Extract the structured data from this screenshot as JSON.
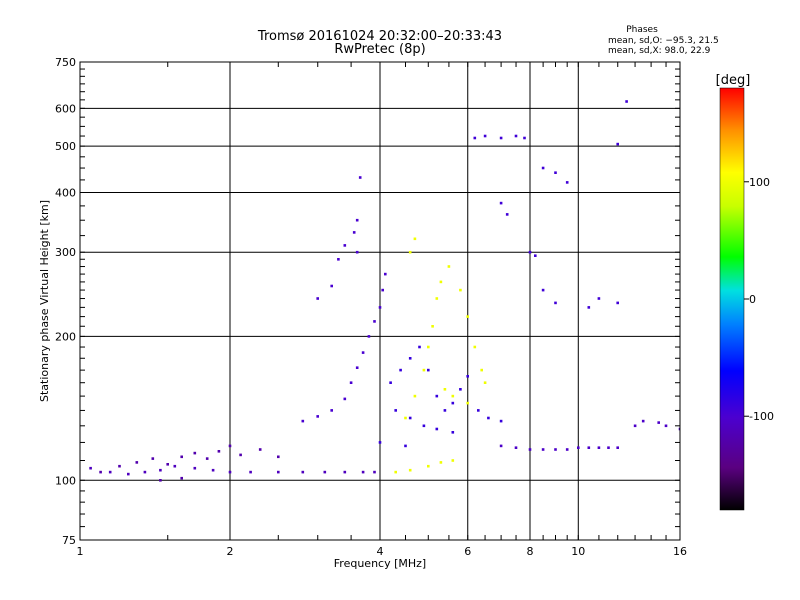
{
  "chart_data": {
    "type": "scatter",
    "title": "Tromsø 20161024 20:32:00–20:33:43",
    "subtitle": "RwPretec (8p)",
    "xlabel": "Frequency [MHz]",
    "ylabel": "Stationary phase Virtual Height [km]",
    "x_scale": "log",
    "y_scale": "log",
    "xlim": [
      1,
      16
    ],
    "ylim": [
      75,
      750
    ],
    "x_ticks": [
      1,
      2,
      4,
      6,
      8,
      10,
      16
    ],
    "y_ticks": [
      75,
      100,
      200,
      300,
      400,
      500,
      600,
      750
    ],
    "grid": true,
    "phases": {
      "heading": "Phases",
      "line_o": "mean, sd,O: −95.3, 21.5",
      "line_x": "mean, sd,X:  98.0, 22.9"
    },
    "colorbar": {
      "label": "[deg]",
      "range": [
        -180,
        180
      ],
      "ticks": [
        100,
        0,
        -100
      ],
      "colormap": "rainbow (black → purple → blue → cyan → green → yellow → orange → red)"
    },
    "series": [
      {
        "phase_deg": -110,
        "description": "Ground-level trace near 100 km",
        "points": [
          [
            1.05,
            106
          ],
          [
            1.15,
            104
          ],
          [
            1.25,
            103
          ],
          [
            1.35,
            104
          ],
          [
            1.45,
            105
          ],
          [
            1.55,
            107
          ],
          [
            1.7,
            106
          ],
          [
            1.85,
            105
          ],
          [
            2.0,
            104
          ],
          [
            2.2,
            104
          ],
          [
            2.5,
            104
          ],
          [
            2.8,
            104
          ],
          [
            3.1,
            104
          ],
          [
            3.4,
            104
          ],
          [
            3.7,
            104
          ],
          [
            3.9,
            104
          ]
        ]
      },
      {
        "phase_deg": -120,
        "description": "Low-frequency scattered echoes",
        "points": [
          [
            1.1,
            104
          ],
          [
            1.2,
            107
          ],
          [
            1.3,
            109
          ],
          [
            1.4,
            111
          ],
          [
            1.5,
            108
          ],
          [
            1.6,
            112
          ],
          [
            1.7,
            114
          ],
          [
            1.8,
            111
          ],
          [
            1.9,
            115
          ],
          [
            2.0,
            118
          ],
          [
            2.1,
            113
          ],
          [
            2.3,
            116
          ],
          [
            2.5,
            112
          ],
          [
            1.45,
            100
          ],
          [
            1.6,
            101
          ]
        ]
      },
      {
        "phase_deg": -100,
        "description": "O-mode trace rising to ~450 km",
        "points": [
          [
            2.8,
            133
          ],
          [
            3.0,
            136
          ],
          [
            3.2,
            140
          ],
          [
            3.4,
            148
          ],
          [
            3.5,
            160
          ],
          [
            3.6,
            172
          ],
          [
            3.7,
            185
          ],
          [
            3.8,
            200
          ],
          [
            3.9,
            215
          ],
          [
            4.0,
            230
          ],
          [
            4.05,
            250
          ],
          [
            4.1,
            270
          ],
          [
            3.6,
            300
          ],
          [
            3.55,
            330
          ],
          [
            3.6,
            350
          ],
          [
            3.65,
            430
          ],
          [
            3.3,
            290
          ],
          [
            3.4,
            310
          ],
          [
            3.2,
            255
          ],
          [
            3.0,
            240
          ]
        ]
      },
      {
        "phase_deg": -90,
        "description": "Blue scatter 4–7 MHz",
        "points": [
          [
            4.2,
            160
          ],
          [
            4.4,
            170
          ],
          [
            4.6,
            180
          ],
          [
            4.8,
            190
          ],
          [
            5.0,
            170
          ],
          [
            5.2,
            150
          ],
          [
            5.4,
            140
          ],
          [
            5.6,
            145
          ],
          [
            5.8,
            155
          ],
          [
            6.0,
            165
          ],
          [
            6.3,
            140
          ],
          [
            6.6,
            135
          ],
          [
            7.0,
            133
          ],
          [
            4.3,
            140
          ],
          [
            4.6,
            135
          ],
          [
            4.9,
            130
          ],
          [
            5.2,
            128
          ],
          [
            5.6,
            126
          ],
          [
            4.0,
            120
          ],
          [
            4.5,
            118
          ]
        ]
      },
      {
        "phase_deg": 100,
        "description": "X-mode yellow trace 4.3–6.5 MHz",
        "points": [
          [
            4.3,
            104
          ],
          [
            4.6,
            105
          ],
          [
            5.0,
            107
          ],
          [
            5.3,
            109
          ],
          [
            5.6,
            110
          ],
          [
            4.5,
            135
          ],
          [
            4.7,
            150
          ],
          [
            4.9,
            170
          ],
          [
            5.0,
            190
          ],
          [
            5.1,
            210
          ],
          [
            5.2,
            240
          ],
          [
            5.3,
            260
          ],
          [
            5.5,
            280
          ],
          [
            5.8,
            250
          ],
          [
            6.0,
            220
          ],
          [
            6.2,
            190
          ],
          [
            6.4,
            170
          ],
          [
            5.4,
            155
          ],
          [
            5.6,
            150
          ],
          [
            6.0,
            145
          ],
          [
            6.5,
            160
          ],
          [
            4.6,
            300
          ],
          [
            4.7,
            320
          ]
        ]
      },
      {
        "phase_deg": -95,
        "description": "Upper trace 6–11 MHz",
        "points": [
          [
            6.2,
            520
          ],
          [
            6.5,
            525
          ],
          [
            7.0,
            520
          ],
          [
            7.5,
            525
          ],
          [
            7.8,
            520
          ],
          [
            8.5,
            450
          ],
          [
            9.0,
            440
          ],
          [
            9.5,
            420
          ],
          [
            7.0,
            380
          ],
          [
            7.2,
            360
          ],
          [
            8.0,
            300
          ],
          [
            8.2,
            295
          ],
          [
            8.5,
            250
          ],
          [
            9.0,
            235
          ],
          [
            10.5,
            230
          ],
          [
            11.0,
            240
          ],
          [
            12.0,
            235
          ],
          [
            12.5,
            620
          ],
          [
            12.0,
            505
          ]
        ]
      },
      {
        "phase_deg": -105,
        "description": "High-frequency trace near 115 km",
        "points": [
          [
            7.0,
            118
          ],
          [
            7.5,
            117
          ],
          [
            8.0,
            116
          ],
          [
            8.5,
            116
          ],
          [
            9.0,
            116
          ],
          [
            9.5,
            116
          ],
          [
            10.0,
            117
          ],
          [
            10.5,
            117
          ],
          [
            11.0,
            117
          ],
          [
            11.5,
            117
          ],
          [
            12.0,
            117
          ],
          [
            13.0,
            130
          ],
          [
            13.5,
            133
          ],
          [
            14.5,
            132
          ],
          [
            15.0,
            130
          ],
          [
            16.0,
            128
          ]
        ]
      }
    ]
  }
}
